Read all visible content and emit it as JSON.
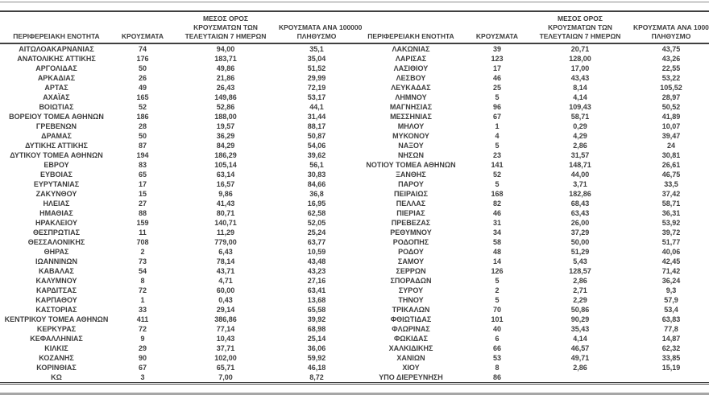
{
  "table": {
    "columns": {
      "region": "ΠΕΡΙΦΕΡΕΙΑΚΗ ΕΝΟΤΗΤΑ",
      "cases": "ΚΡΟΥΣΜΑΤΑ",
      "avg7": "ΜΕΣΟΣ ΟΡΟΣ\nΚΡΟΥΣΜΑΤΩΝ ΤΩΝ\nΤΕΛΕΥΤΑΙΩΝ 7 ΗΜΕΡΩΝ",
      "per100k": "ΚΡΟΥΣΜΑΤΑ ΑΝΑ 100000\nΠΛΗΘΥΣΜΟ"
    },
    "left_rows": [
      [
        "ΑΙΤΩΛΟΑΚΑΡΝΑΝΙΑΣ",
        "74",
        "94,00",
        "35,1"
      ],
      [
        "ΑΝΑΤΟΛΙΚΗΣ ΑΤΤΙΚΗΣ",
        "176",
        "183,71",
        "35,04"
      ],
      [
        "ΑΡΓΟΛΙΔΑΣ",
        "50",
        "49,86",
        "51,52"
      ],
      [
        "ΑΡΚΑΔΙΑΣ",
        "26",
        "21,86",
        "29,99"
      ],
      [
        "ΑΡΤΑΣ",
        "49",
        "26,43",
        "72,19"
      ],
      [
        "ΑΧΑΪΑΣ",
        "165",
        "149,86",
        "53,17"
      ],
      [
        "ΒΟΙΩΤΙΑΣ",
        "52",
        "52,86",
        "44,1"
      ],
      [
        "ΒΟΡΕΙΟΥ ΤΟΜΕΑ ΑΘΗΝΩΝ",
        "186",
        "188,00",
        "31,44"
      ],
      [
        "ΓΡΕΒΕΝΩΝ",
        "28",
        "19,57",
        "88,17"
      ],
      [
        "ΔΡΑΜΑΣ",
        "50",
        "36,29",
        "50,87"
      ],
      [
        "ΔΥΤΙΚΗΣ ΑΤΤΙΚΗΣ",
        "87",
        "84,29",
        "54,06"
      ],
      [
        "ΔΥΤΙΚΟΥ ΤΟΜΕΑ ΑΘΗΝΩΝ",
        "194",
        "186,29",
        "39,62"
      ],
      [
        "ΕΒΡΟΥ",
        "83",
        "105,14",
        "56,1"
      ],
      [
        "ΕΥΒΟΙΑΣ",
        "65",
        "63,14",
        "30,83"
      ],
      [
        "ΕΥΡΥΤΑΝΙΑΣ",
        "17",
        "16,57",
        "84,66"
      ],
      [
        "ΖΑΚΥΝΘΟΥ",
        "15",
        "9,86",
        "36,8"
      ],
      [
        "ΗΛΕΙΑΣ",
        "27",
        "41,43",
        "16,95"
      ],
      [
        "ΗΜΑΘΙΑΣ",
        "88",
        "80,71",
        "62,58"
      ],
      [
        "ΗΡΑΚΛΕΙΟΥ",
        "159",
        "140,71",
        "52,05"
      ],
      [
        "ΘΕΣΠΡΩΤΙΑΣ",
        "11",
        "11,29",
        "25,24"
      ],
      [
        "ΘΕΣΣΑΛΟΝΙΚΗΣ",
        "708",
        "779,00",
        "63,77"
      ],
      [
        "ΘΗΡΑΣ",
        "2",
        "6,43",
        "10,59"
      ],
      [
        "ΙΩΑΝΝΙΝΩΝ",
        "73",
        "78,14",
        "43,48"
      ],
      [
        "ΚΑΒΑΛΑΣ",
        "54",
        "43,71",
        "43,23"
      ],
      [
        "ΚΑΛΥΜΝΟΥ",
        "8",
        "4,71",
        "27,16"
      ],
      [
        "ΚΑΡΔΙΤΣΑΣ",
        "72",
        "60,00",
        "63,41"
      ],
      [
        "ΚΑΡΠΑΘΟΥ",
        "1",
        "0,43",
        "13,68"
      ],
      [
        "ΚΑΣΤΟΡΙΑΣ",
        "33",
        "29,14",
        "65,58"
      ],
      [
        "ΚΕΝΤΡΙΚΟΥ ΤΟΜΕΑ ΑΘΗΝΩΝ",
        "411",
        "386,86",
        "39,92"
      ],
      [
        "ΚΕΡΚΥΡΑΣ",
        "72",
        "77,14",
        "68,98"
      ],
      [
        "ΚΕΦΑΛΛΗΝΙΑΣ",
        "9",
        "10,43",
        "25,14"
      ],
      [
        "ΚΙΛΚΙΣ",
        "29",
        "37,71",
        "36,06"
      ],
      [
        "ΚΟΖΑΝΗΣ",
        "90",
        "102,00",
        "59,92"
      ],
      [
        "ΚΟΡΙΝΘΙΑΣ",
        "67",
        "65,71",
        "46,18"
      ],
      [
        "ΚΩ",
        "3",
        "7,00",
        "8,72"
      ]
    ],
    "right_rows": [
      [
        "ΛΑΚΩΝΙΑΣ",
        "39",
        "20,71",
        "43,75"
      ],
      [
        "ΛΑΡΙΣΑΣ",
        "123",
        "128,00",
        "43,26"
      ],
      [
        "ΛΑΣΙΘΙΟΥ",
        "17",
        "17,00",
        "22,55"
      ],
      [
        "ΛΕΣΒΟΥ",
        "46",
        "43,43",
        "53,22"
      ],
      [
        "ΛΕΥΚΑΔΑΣ",
        "25",
        "8,14",
        "105,52"
      ],
      [
        "ΛΗΜΝΟΥ",
        "5",
        "4,14",
        "28,97"
      ],
      [
        "ΜΑΓΝΗΣΙΑΣ",
        "96",
        "109,43",
        "50,52"
      ],
      [
        "ΜΕΣΣΗΝΙΑΣ",
        "67",
        "58,71",
        "41,89"
      ],
      [
        "ΜΗΛΟΥ",
        "1",
        "0,29",
        "10,07"
      ],
      [
        "ΜΥΚΟΝΟΥ",
        "4",
        "4,29",
        "39,47"
      ],
      [
        "ΝΑΞΟΥ",
        "5",
        "2,86",
        "24"
      ],
      [
        "ΝΗΣΩΝ",
        "23",
        "31,57",
        "30,81"
      ],
      [
        "ΝΟΤΙΟΥ ΤΟΜΕΑ ΑΘΗΝΩΝ",
        "141",
        "148,71",
        "26,61"
      ],
      [
        "ΞΑΝΘΗΣ",
        "52",
        "44,00",
        "46,75"
      ],
      [
        "ΠΑΡΟΥ",
        "5",
        "3,71",
        "33,5"
      ],
      [
        "ΠΕΙΡΑΙΩΣ",
        "168",
        "182,86",
        "37,42"
      ],
      [
        "ΠΕΛΛΑΣ",
        "82",
        "68,43",
        "58,71"
      ],
      [
        "ΠΙΕΡΙΑΣ",
        "46",
        "63,43",
        "36,31"
      ],
      [
        "ΠΡΕΒΕΖΑΣ",
        "31",
        "26,00",
        "53,92"
      ],
      [
        "ΡΕΘΥΜΝΟΥ",
        "34",
        "37,29",
        "39,72"
      ],
      [
        "ΡΟΔΟΠΗΣ",
        "58",
        "50,00",
        "51,77"
      ],
      [
        "ΡΟΔΟΥ",
        "48",
        "51,29",
        "40,06"
      ],
      [
        "ΣΑΜΟΥ",
        "14",
        "5,43",
        "42,45"
      ],
      [
        "ΣΕΡΡΩΝ",
        "126",
        "128,57",
        "71,42"
      ],
      [
        "ΣΠΟΡΑΔΩΝ",
        "5",
        "2,86",
        "36,24"
      ],
      [
        "ΣΥΡΟΥ",
        "2",
        "2,71",
        "9,3"
      ],
      [
        "ΤΗΝΟΥ",
        "5",
        "2,29",
        "57,9"
      ],
      [
        "ΤΡΙΚΑΛΩΝ",
        "70",
        "50,86",
        "53,4"
      ],
      [
        "ΦΘΙΩΤΙΔΑΣ",
        "101",
        "90,29",
        "63,83"
      ],
      [
        "ΦΛΩΡΙΝΑΣ",
        "40",
        "35,43",
        "77,8"
      ],
      [
        "ΦΩΚΙΔΑΣ",
        "6",
        "4,14",
        "14,87"
      ],
      [
        "ΧΑΛΚΙΔΙΚΗΣ",
        "66",
        "46,57",
        "62,32"
      ],
      [
        "ΧΑΝΙΩΝ",
        "53",
        "49,71",
        "33,85"
      ],
      [
        "ΧΙΟΥ",
        "8",
        "2,86",
        "15,19"
      ],
      [
        "ΥΠΟ ΔΙΕΡΕΥΝΗΣΗ",
        "86",
        "",
        ""
      ]
    ]
  },
  "colors": {
    "text": "#3d3d3d",
    "rule_dark": "#404040",
    "rule_gray": "#a6a6a6"
  }
}
